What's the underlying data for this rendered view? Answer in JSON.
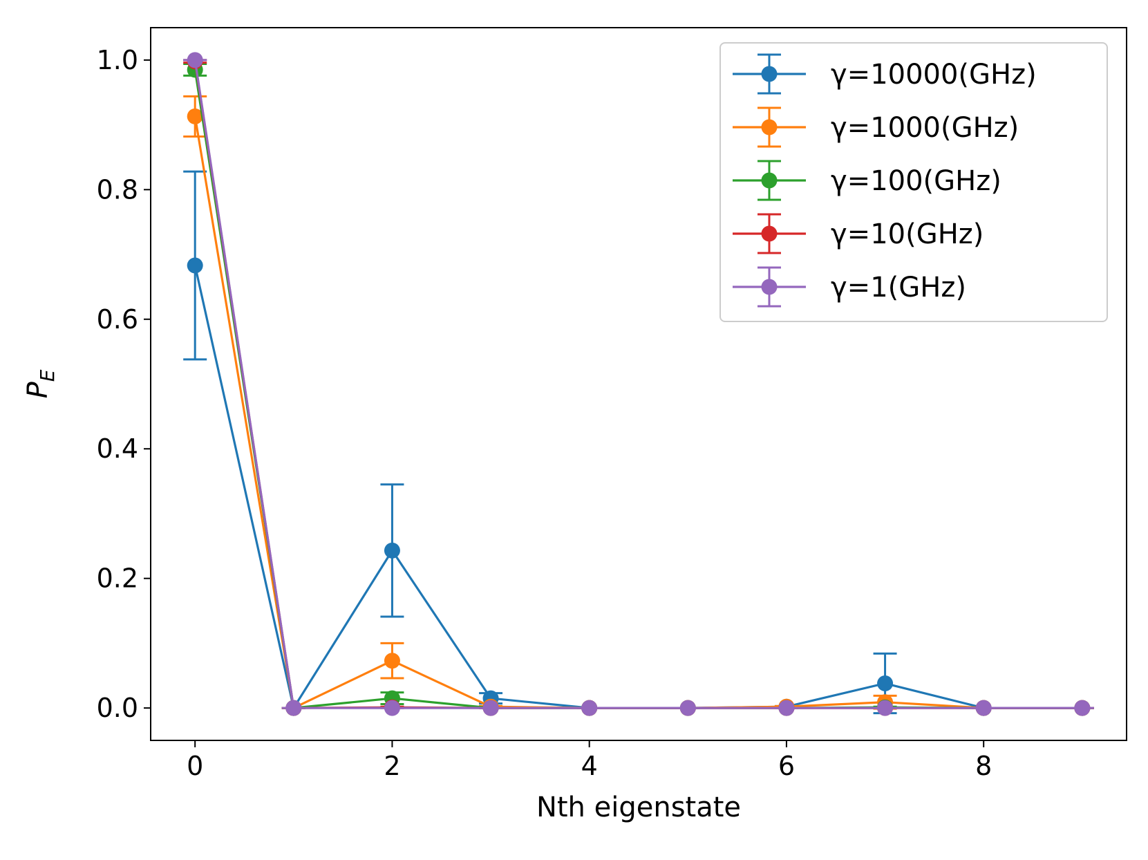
{
  "chart_data": {
    "type": "line",
    "title": "",
    "xlabel": "Nth eigenstate",
    "ylabel": "P",
    "ylabel_subscript": "E",
    "xlim": [
      -0.45,
      9.45
    ],
    "ylim": [
      -0.05,
      1.05
    ],
    "xticks": [
      0,
      2,
      4,
      6,
      8
    ],
    "xtick_labels": [
      "0",
      "2",
      "4",
      "6",
      "8"
    ],
    "yticks": [
      0.0,
      0.2,
      0.4,
      0.6,
      0.8,
      1.0
    ],
    "ytick_labels": [
      "0.0",
      "0.2",
      "0.4",
      "0.6",
      "0.8",
      "1.0"
    ],
    "grid": false,
    "legend_position": "top-right",
    "x": [
      0,
      1,
      2,
      3,
      4,
      5,
      6,
      7,
      8,
      9
    ],
    "series": [
      {
        "name": "γ=10000(GHz)",
        "color": "#1f77b4",
        "values": [
          0.683,
          0.0,
          0.243,
          0.015,
          0.0,
          0.0,
          0.002,
          0.038,
          0.0,
          0.0
        ],
        "errors": [
          0.145,
          0.0,
          0.102,
          0.008,
          0.0,
          0.0,
          0.001,
          0.046,
          0.0,
          0.0
        ]
      },
      {
        "name": "γ=1000(GHz)",
        "color": "#ff7f0e",
        "values": [
          0.913,
          0.0,
          0.073,
          0.002,
          0.0,
          0.0,
          0.002,
          0.009,
          0.0,
          0.0
        ],
        "errors": [
          0.031,
          0.0,
          0.027,
          0.001,
          0.0,
          0.0,
          0.001,
          0.01,
          0.0,
          0.0
        ]
      },
      {
        "name": "γ=100(GHz)",
        "color": "#2ca02c",
        "values": [
          0.985,
          0.0,
          0.015,
          0.0,
          0.0,
          0.0,
          0.0,
          0.001,
          0.0,
          0.0
        ],
        "errors": [
          0.009,
          0.0,
          0.009,
          0.0,
          0.0,
          0.0,
          0.0,
          0.001,
          0.0,
          0.0
        ]
      },
      {
        "name": "γ=10(GHz)",
        "color": "#d62728",
        "values": [
          0.998,
          0.0,
          0.001,
          0.0,
          0.0,
          0.0,
          0.0,
          0.0,
          0.0,
          0.0
        ],
        "errors": [
          0.002,
          0.0,
          0.001,
          0.0,
          0.0,
          0.0,
          0.0,
          0.0,
          0.0,
          0.0
        ]
      },
      {
        "name": "γ=1(GHz)",
        "color": "#9467bd",
        "values": [
          1.0,
          0.0,
          0.0,
          0.0,
          0.0,
          0.0,
          0.0,
          0.0,
          0.0,
          0.0
        ],
        "errors": [
          0.0,
          0.0,
          0.0,
          0.0,
          0.0,
          0.0,
          0.0,
          0.0,
          0.0,
          0.0
        ]
      }
    ]
  }
}
